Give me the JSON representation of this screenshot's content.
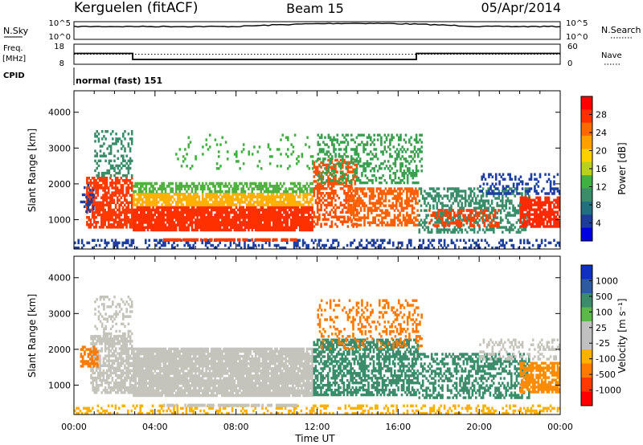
{
  "header": {
    "station": "Kerguelen (fitACF)",
    "beam": "Beam 15",
    "date": "05/Apr/2014"
  },
  "noise_panel": {
    "left_label": "N.Sky",
    "right_label": "N.Search",
    "left_ticks": [
      "10^5",
      "10^0"
    ],
    "right_ticks": [
      "10^5",
      "10^0"
    ]
  },
  "freq_panel": {
    "left_label_line1": "Freq.",
    "left_label_line2": "[MHz]",
    "right_label": "Nave",
    "left_ticks": [
      "18",
      "8"
    ],
    "right_ticks": [
      "60",
      "0"
    ],
    "freq_series": [
      {
        "x": 0.0,
        "y": 13.4
      },
      {
        "x": 2.9,
        "y": 13.4
      },
      {
        "x": 2.9,
        "y": 10.4
      },
      {
        "x": 16.9,
        "y": 10.4
      },
      {
        "x": 16.9,
        "y": 13.4
      },
      {
        "x": 24.0,
        "y": 13.4
      }
    ],
    "freq_range": [
      8,
      18
    ],
    "nave_level": 0.5
  },
  "cpid": {
    "label": "CPID",
    "value": "normal (fast) 151"
  },
  "chart_data": [
    {
      "type": "heatmap",
      "name": "power",
      "ylabel": "Slant Range [km]",
      "xlabel": "Time UT",
      "xlim": [
        0,
        24
      ],
      "ylim": [
        180,
        4600
      ],
      "y_ticks": [
        "1000",
        "2000",
        "3000",
        "4000"
      ],
      "colorbar": {
        "label": "Power [dB]",
        "ticks": [
          "28",
          "24",
          "20",
          "16",
          "12",
          "8",
          "4"
        ],
        "colors": [
          "#ff0000",
          "#ff3000",
          "#ff6a00",
          "#ffa000",
          "#ffd000",
          "#b8d020",
          "#40b040",
          "#3a8c6a",
          "#207080",
          "#1e3c9a",
          "#0000e0"
        ]
      },
      "regions": [
        {
          "t0": 0.0,
          "t1": 24.0,
          "r0": 180,
          "r1": 460,
          "c": "#1f3fa0",
          "d": 0.35
        },
        {
          "t0": 0.6,
          "t1": 2.9,
          "r0": 760,
          "r1": 2200,
          "c": "#ff3a00",
          "d": 0.75
        },
        {
          "t0": 2.9,
          "t1": 11.8,
          "r0": 680,
          "r1": 1380,
          "c": "#ff3000",
          "d": 0.9
        },
        {
          "t0": 2.9,
          "t1": 11.8,
          "r0": 1380,
          "r1": 1750,
          "c": "#ffb000",
          "d": 0.8
        },
        {
          "t0": 2.9,
          "t1": 11.8,
          "r0": 1750,
          "r1": 2050,
          "c": "#50b040",
          "d": 0.6
        },
        {
          "t0": 4.4,
          "t1": 11.0,
          "r0": 400,
          "r1": 480,
          "c": "#ff3a00",
          "d": 0.8
        },
        {
          "t0": 11.8,
          "t1": 14.0,
          "r0": 780,
          "r1": 2700,
          "c": "#ff5000",
          "d": 0.5
        },
        {
          "t0": 12.0,
          "t1": 17.2,
          "r0": 2000,
          "r1": 3400,
          "c": "#3aa050",
          "d": 0.35
        },
        {
          "t0": 13.5,
          "t1": 17.0,
          "r0": 820,
          "r1": 1900,
          "c": "#ff6000",
          "d": 0.55
        },
        {
          "t0": 17.0,
          "t1": 22.5,
          "r0": 620,
          "r1": 1900,
          "c": "#3a8c6a",
          "d": 0.45
        },
        {
          "t0": 17.5,
          "t1": 21.0,
          "r0": 800,
          "r1": 1300,
          "c": "#ff4000",
          "d": 0.45
        },
        {
          "t0": 22.0,
          "t1": 24.0,
          "r0": 780,
          "r1": 1650,
          "c": "#ff2a00",
          "d": 0.75
        },
        {
          "t0": 20.0,
          "t1": 24.0,
          "r0": 1700,
          "r1": 2300,
          "c": "#1f3fa0",
          "d": 0.3
        },
        {
          "t0": 1.0,
          "t1": 2.9,
          "r0": 2200,
          "r1": 3500,
          "c": "#3a8c6a",
          "d": 0.3
        },
        {
          "t0": 5.0,
          "t1": 12.0,
          "r0": 2400,
          "r1": 3400,
          "c": "#40b040",
          "d": 0.08
        },
        {
          "t0": 0.3,
          "t1": 1.0,
          "r0": 1200,
          "r1": 2000,
          "c": "#1f3fa0",
          "d": 0.35
        }
      ]
    },
    {
      "type": "heatmap",
      "name": "velocity",
      "ylabel": "Slant Range [km]",
      "xlabel": "Time UT",
      "xlim": [
        0,
        24
      ],
      "ylim": [
        180,
        4600
      ],
      "y_ticks": [
        "1000",
        "2000",
        "3000",
        "4000"
      ],
      "x_ticks": [
        "00:00",
        "04:00",
        "08:00",
        "12:00",
        "16:00",
        "20:00",
        "00:00"
      ],
      "colorbar": {
        "label": "Velocity [m s⁻¹]",
        "ticks": [
          "1000",
          "500",
          "100",
          "25",
          "-25",
          "-100",
          "-500",
          "-1000"
        ],
        "colors": [
          "#1030c0",
          "#2d5aa0",
          "#3a8c6a",
          "#5ab848",
          "#c0c0c0",
          "#c0c0c0",
          "#ffb000",
          "#ff7a00",
          "#ff3a00",
          "#ff0000"
        ]
      },
      "regions": [
        {
          "t0": 0.0,
          "t1": 24.0,
          "r0": 180,
          "r1": 460,
          "c": "#ffb000",
          "d": 0.3
        },
        {
          "t0": 0.8,
          "t1": 2.9,
          "r0": 760,
          "r1": 2400,
          "c": "#c4c4bc",
          "d": 0.75
        },
        {
          "t0": 0.3,
          "t1": 1.2,
          "r0": 1500,
          "r1": 2100,
          "c": "#ff7a00",
          "d": 0.6
        },
        {
          "t0": 2.9,
          "t1": 11.8,
          "r0": 680,
          "r1": 2050,
          "c": "#c4c4bc",
          "d": 0.92
        },
        {
          "t0": 4.4,
          "t1": 11.0,
          "r0": 400,
          "r1": 480,
          "c": "#c4c4bc",
          "d": 0.8
        },
        {
          "t0": 11.8,
          "t1": 17.0,
          "r0": 700,
          "r1": 2300,
          "c": "#3a8c6a",
          "d": 0.6
        },
        {
          "t0": 12.0,
          "t1": 17.2,
          "r0": 2000,
          "r1": 3400,
          "c": "#ff7a00",
          "d": 0.25
        },
        {
          "t0": 17.0,
          "t1": 22.5,
          "r0": 620,
          "r1": 1900,
          "c": "#3a8c6a",
          "d": 0.45
        },
        {
          "t0": 22.0,
          "t1": 24.0,
          "r0": 780,
          "r1": 1650,
          "c": "#ff8c00",
          "d": 0.75
        },
        {
          "t0": 1.0,
          "t1": 2.9,
          "r0": 2200,
          "r1": 3500,
          "c": "#c4c4bc",
          "d": 0.3
        },
        {
          "t0": 20.0,
          "t1": 24.0,
          "r0": 1700,
          "r1": 2300,
          "c": "#c4c4bc",
          "d": 0.3
        }
      ]
    }
  ]
}
